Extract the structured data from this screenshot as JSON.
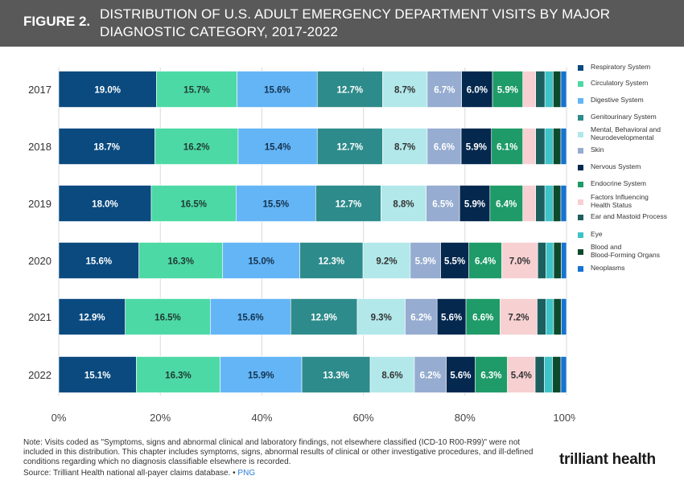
{
  "header": {
    "figure_label": "FIGURE 2.",
    "title": "DISTRIBUTION OF U.S. ADULT EMERGENCY DEPARTMENT VISITS BY MAJOR DIAGNOSTIC CATEGORY, 2017-2022"
  },
  "colors": {
    "header_bg": "#595959",
    "grid": "#d9d9d9"
  },
  "chart_data": {
    "type": "bar",
    "orientation": "horizontal",
    "stacked": true,
    "title": "DISTRIBUTION OF U.S. ADULT EMERGENCY DEPARTMENT VISITS BY MAJOR DIAGNOSTIC CATEGORY, 2017-2022",
    "categories": [
      "2017",
      "2018",
      "2019",
      "2020",
      "2021",
      "2022"
    ],
    "xlim": [
      0,
      100
    ],
    "xticks": [
      "0%",
      "20%",
      "40%",
      "60%",
      "80%",
      "100%"
    ],
    "grid": true,
    "legend_position": "right",
    "series": [
      {
        "name": "Respiratory System",
        "color": "#0a4a7f",
        "label_color": "#ffffff",
        "values": [
          19.0,
          18.7,
          18.0,
          15.6,
          12.9,
          15.1
        ]
      },
      {
        "name": "Circulatory System",
        "color": "#4dd9a5",
        "label_color": "#1f3a33",
        "values": [
          15.7,
          16.2,
          16.5,
          16.3,
          16.5,
          16.3
        ]
      },
      {
        "name": "Digestive System",
        "color": "#64b5f6",
        "label_color": "#14324d",
        "values": [
          15.6,
          15.4,
          15.5,
          15.0,
          15.6,
          15.9
        ]
      },
      {
        "name": "Genitourinary System",
        "color": "#2e8b8b",
        "label_color": "#ffffff",
        "values": [
          12.7,
          12.7,
          12.7,
          12.3,
          12.9,
          13.3
        ]
      },
      {
        "name": "Mental, Behavioral and\nNeurodevelopmental",
        "color": "#b2e8ea",
        "label_color": "#333333",
        "values": [
          8.7,
          8.7,
          8.8,
          9.2,
          9.3,
          8.6
        ]
      },
      {
        "name": "Skin",
        "color": "#96acd0",
        "label_color": "#ffffff",
        "values": [
          6.7,
          6.6,
          6.5,
          5.9,
          6.2,
          6.2
        ]
      },
      {
        "name": "Nervous System",
        "color": "#05284f",
        "label_color": "#ffffff",
        "values": [
          6.0,
          5.9,
          5.9,
          5.5,
          5.6,
          5.6
        ]
      },
      {
        "name": "Endocrine System",
        "color": "#1e9b68",
        "label_color": "#ffffff",
        "values": [
          5.9,
          6.1,
          6.4,
          6.4,
          6.6,
          6.3
        ]
      },
      {
        "name": "Factors Influencing\nHealth Status",
        "color": "#f7d0d2",
        "label_color": "#333333",
        "values": [
          2.5,
          2.5,
          2.5,
          7.0,
          7.2,
          5.4
        ]
      },
      {
        "name": "Ear and Mastoid Process",
        "color": "#1d5e5e",
        "label_color": "#ffffff",
        "values": [
          1.8,
          1.8,
          1.8,
          1.6,
          1.7,
          1.8
        ]
      },
      {
        "name": "Eye",
        "color": "#3ec3c7",
        "label_color": "#ffffff",
        "values": [
          1.6,
          1.6,
          1.6,
          1.5,
          1.5,
          1.6
        ]
      },
      {
        "name": "Blood and\nBlood-Forming Organs",
        "color": "#0d4a2c",
        "label_color": "#ffffff",
        "values": [
          1.5,
          1.5,
          1.5,
          1.5,
          1.5,
          1.6
        ]
      },
      {
        "name": "Neoplasms",
        "color": "#1673d1",
        "label_color": "#ffffff",
        "values": [
          1.1,
          1.1,
          1.1,
          1.0,
          1.0,
          1.1
        ]
      }
    ],
    "data_labels": [
      [
        "19.0%",
        "15.7%",
        "15.6%",
        "12.7%",
        "8.7%",
        "6.7%",
        "6.0%",
        "5.9%",
        "",
        "",
        "",
        "",
        ""
      ],
      [
        "18.7%",
        "16.2%",
        "15.4%",
        "12.7%",
        "8.7%",
        "6.6%",
        "5.9%",
        "6.1%",
        "",
        "",
        "",
        "",
        ""
      ],
      [
        "18.0%",
        "16.5%",
        "15.5%",
        "12.7%",
        "8.8%",
        "6.5%",
        "5.9%",
        "6.4%",
        "",
        "",
        "",
        "",
        ""
      ],
      [
        "15.6%",
        "16.3%",
        "15.0%",
        "12.3%",
        "9.2%",
        "5.9%",
        "5.5%",
        "6.4%",
        "7.0%",
        "",
        "",
        "",
        ""
      ],
      [
        "12.9%",
        "16.5%",
        "15.6%",
        "12.9%",
        "9.3%",
        "6.2%",
        "5.6%",
        "6.6%",
        "7.2%",
        "",
        "",
        "",
        ""
      ],
      [
        "15.1%",
        "16.3%",
        "15.9%",
        "13.3%",
        "8.6%",
        "6.2%",
        "5.6%",
        "6.3%",
        "5.4%",
        "",
        "",
        "",
        ""
      ]
    ]
  },
  "footer": {
    "note": "Note: Visits coded as \"Symptoms, signs and abnormal clinical and laboratory findings, not elsewhere classified (ICD-10 R00-R99)\" were not included in this distribution. This chapter includes symptoms, signs, abnormal results of clinical or other investigative procedures, and ill-defined conditions regarding which no diagnosis classifiable elsewhere is recorded.",
    "source": "Source: Trilliant Health national all-payer claims database.",
    "separator": " • ",
    "png_link": "PNG",
    "logo": "trilliant health"
  }
}
